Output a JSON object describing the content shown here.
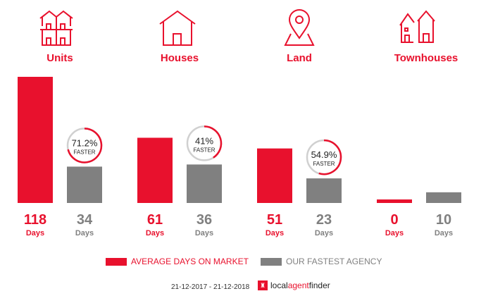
{
  "colors": {
    "average": "#e8112d",
    "fastest": "#808080",
    "ring_bg": "#d0d0d0"
  },
  "categories": [
    {
      "label": "Units",
      "icon": "units-icon"
    },
    {
      "label": "Houses",
      "icon": "house-icon"
    },
    {
      "label": "Land",
      "icon": "land-pin-icon"
    },
    {
      "label": "Townhouses",
      "icon": "townhouses-icon"
    }
  ],
  "chart_data": {
    "type": "bar",
    "categories": [
      "Units",
      "Houses",
      "Land",
      "Townhouses"
    ],
    "series": [
      {
        "name": "AVERAGE DAYS ON MARKET",
        "values": [
          118,
          61,
          51,
          0
        ]
      },
      {
        "name": "OUR FASTEST AGENCY",
        "values": [
          34,
          36,
          23,
          10
        ]
      }
    ],
    "value_unit": "Days",
    "faster": [
      {
        "pct": 71.2,
        "label": "71.2%"
      },
      {
        "pct": 41,
        "label": "41%"
      },
      {
        "pct": 54.9,
        "label": "54.9%"
      },
      null
    ],
    "faster_text": "FASTER"
  },
  "legend": {
    "average": "AVERAGE DAYS ON MARKET",
    "fastest": "OUR FASTEST AGENCY"
  },
  "footer": {
    "date_range": "21-12-2017 - 21-12-2018",
    "brand_local": "local",
    "brand_agent": "agent",
    "brand_finder": "finder"
  }
}
